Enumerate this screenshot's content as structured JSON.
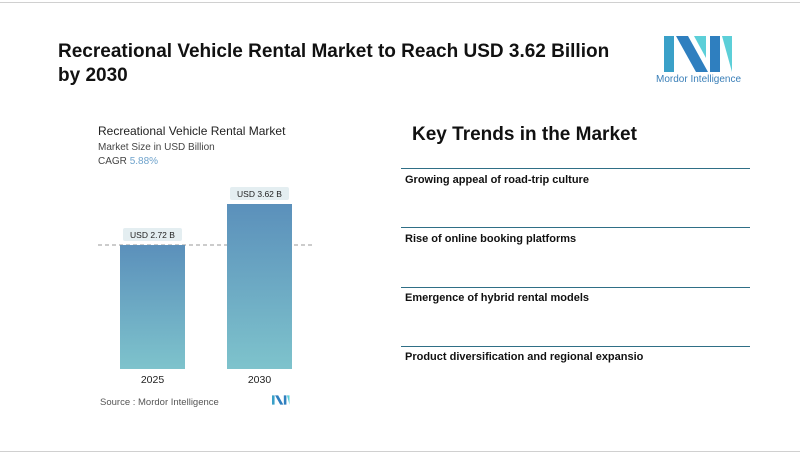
{
  "title": " Recreational Vehicle Rental Market to Reach USD 3.62 Billion by 2030",
  "logo": {
    "text": "Mordor Intelligence"
  },
  "chart_data": {
    "type": "bar",
    "title": "Recreational Vehicle Rental Market",
    "subtitle": "Market Size in USD Billion",
    "cagr_label": "CAGR",
    "cagr_value": "5.88%",
    "categories": [
      "2025",
      "2030"
    ],
    "values": [
      2.72,
      3.62
    ],
    "data_labels": [
      "USD 2.72 B",
      "USD 3.62 B"
    ],
    "ylim": [
      0,
      3.62
    ],
    "colors": {
      "top": "#5b90bb",
      "bottom": "#7ec3cc"
    },
    "source": "Source :  Mordor Intelligence"
  },
  "trends": {
    "heading": "Key Trends in the Market",
    "items": [
      "Growing appeal of road-trip culture",
      "Rise of online booking platforms",
      "Emergence of hybrid rental models",
      "Product diversification and regional expansio"
    ]
  }
}
